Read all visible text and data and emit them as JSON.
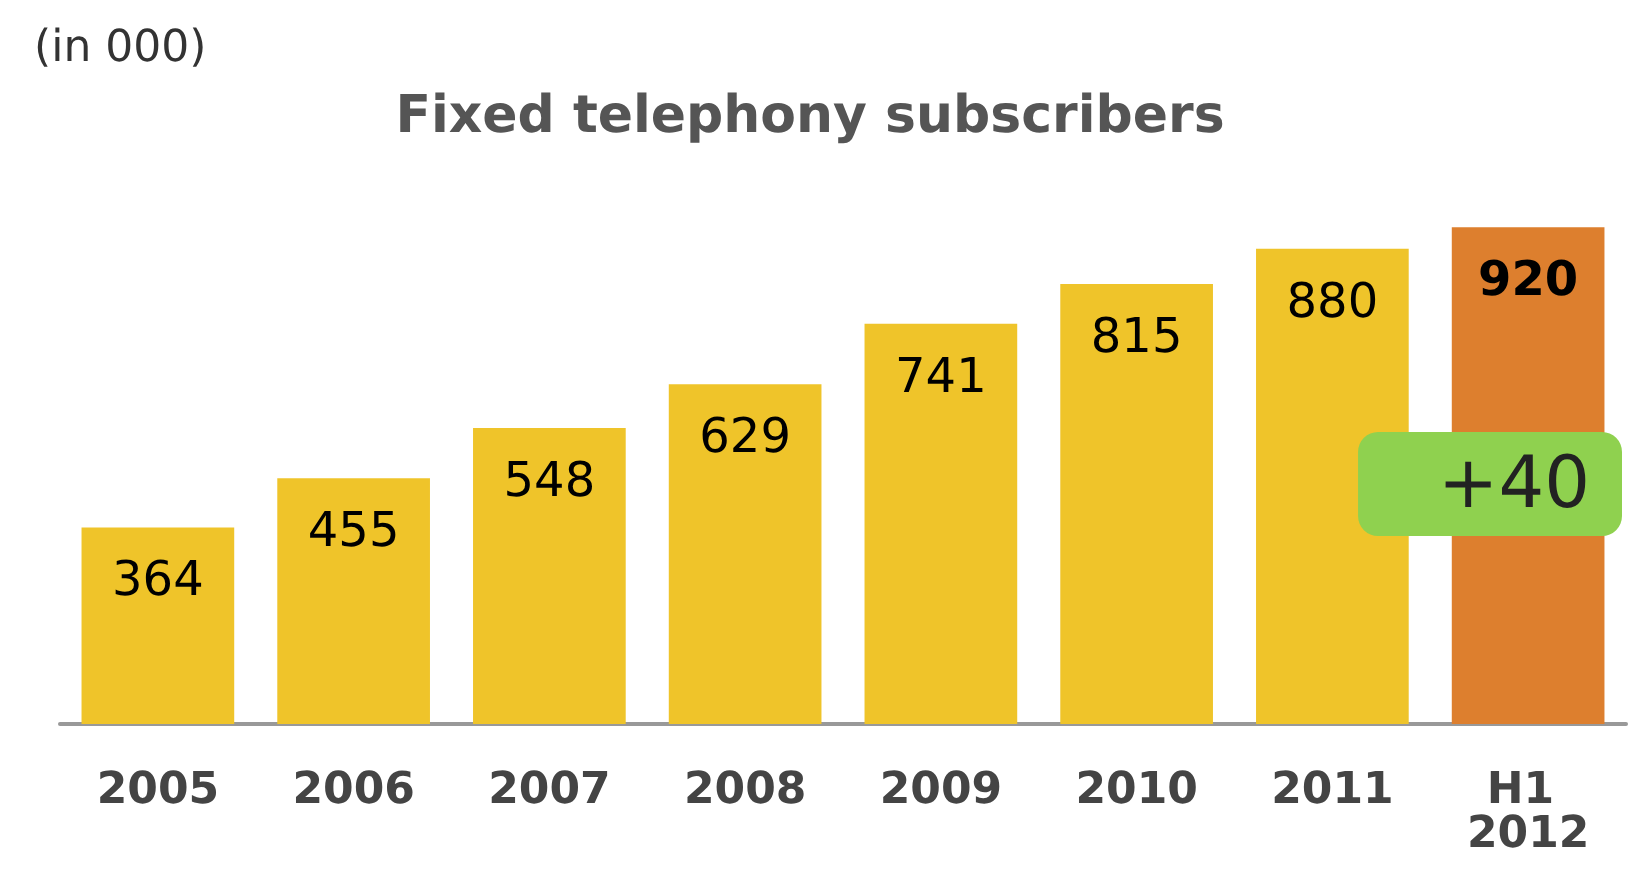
{
  "chart_data": {
    "type": "bar",
    "title": "Fixed telephony subscribers",
    "subtitle": "(in 000)",
    "categories": [
      "2005",
      "2006",
      "2007",
      "2008",
      "2009",
      "2010",
      "2011",
      "H1 2012"
    ],
    "values": [
      364,
      455,
      548,
      629,
      741,
      815,
      880,
      920
    ],
    "colors": [
      "#efc42a",
      "#efc42a",
      "#efc42a",
      "#efc42a",
      "#efc42a",
      "#efc42a",
      "#efc42a",
      "#dd7f2e"
    ],
    "data_labels": true,
    "tick_labels": "x",
    "annotations": [
      "+40"
    ]
  }
}
